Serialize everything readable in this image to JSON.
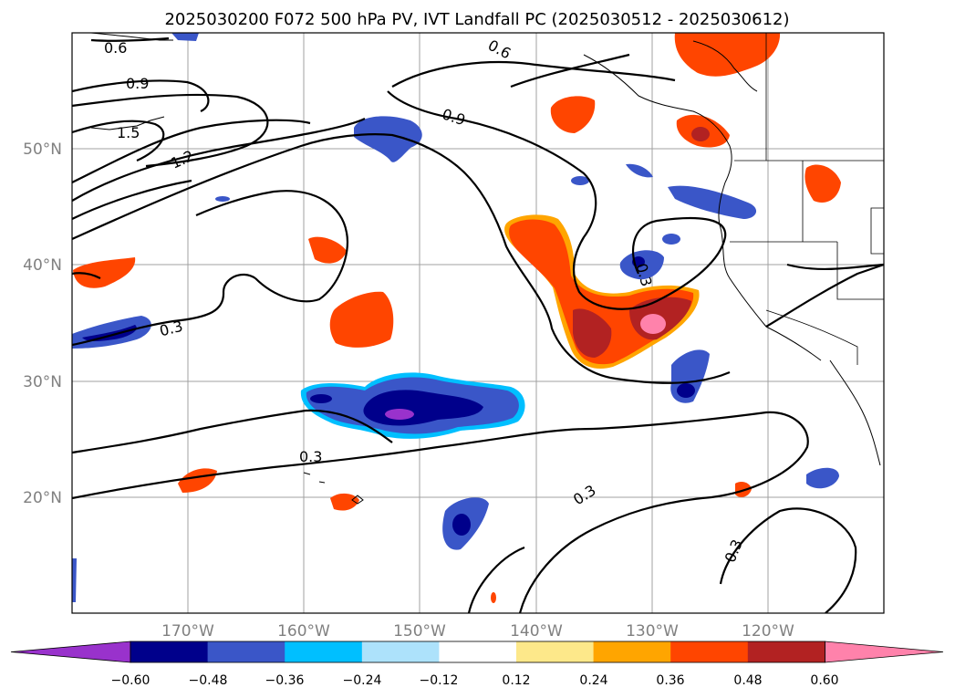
{
  "title": "2025030200 F072 500 hPa PV, IVT Landfall PC (2025030512 - 2025030612)",
  "lat_labels": [
    "50°N",
    "40°N",
    "30°N",
    "20°N"
  ],
  "lon_labels": [
    "170°W",
    "160°W",
    "150°W",
    "140°W",
    "130°W",
    "120°W"
  ],
  "contour_labels": [
    "0.6",
    "0.6",
    "0.9",
    "0.9",
    "1.5",
    "1.2",
    "0.3",
    "0.3",
    "0.3",
    "0.3",
    "0.3"
  ],
  "colorbar": {
    "ticks": [
      "−0.60",
      "−0.48",
      "−0.36",
      "−0.24",
      "−0.12",
      "0.12",
      "0.24",
      "0.36",
      "0.48",
      "0.60"
    ],
    "colors": [
      "#9932cc",
      "#00008b",
      "#3a56c8",
      "#00bfff",
      "#ade2fb",
      "#ffffff",
      "#fde88a",
      "#ffa500",
      "#ff4500",
      "#b22222",
      "#ff82ab"
    ]
  }
}
